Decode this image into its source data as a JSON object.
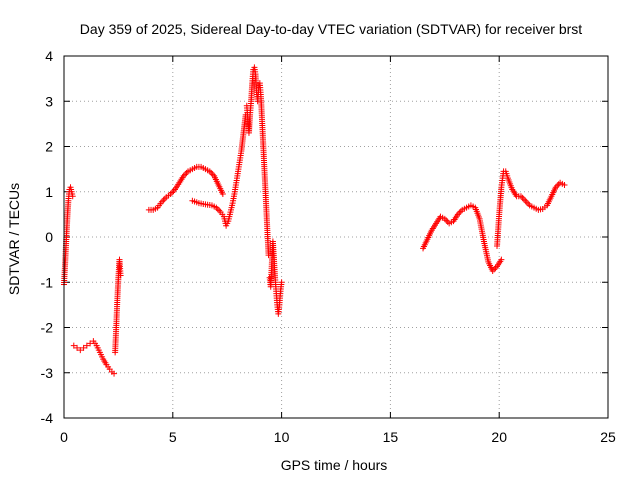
{
  "chart_data": {
    "type": "scatter",
    "title": "Day 359 of 2025, Sidereal Day-to-day VTEC variation (SDTVAR) for receiver brst",
    "xlabel": "GPS time / hours",
    "ylabel": "SDTVAR / TECUs",
    "xlim": [
      0,
      25
    ],
    "ylim": [
      -4,
      4
    ],
    "xticks": [
      "0",
      "5",
      "10",
      "15",
      "20",
      "25"
    ],
    "yticks": [
      "-4",
      "-3",
      "-2",
      "-1",
      "0",
      "1",
      "2",
      "3",
      "4"
    ],
    "grid": true,
    "marker": "plus",
    "color": "#ff0000",
    "series": [
      {
        "x": [
          0.0,
          0.05,
          0.1,
          0.15,
          0.2,
          0.25,
          0.3,
          0.35,
          0.4
        ],
        "y": [
          -1.05,
          -0.6,
          -0.1,
          0.4,
          0.8,
          1.05,
          1.1,
          1.0,
          0.9
        ]
      },
      {
        "x": [
          0.45,
          0.6,
          0.75,
          0.9,
          1.05,
          1.2,
          1.35,
          1.5,
          1.65,
          1.8,
          1.95,
          2.1,
          2.2,
          2.3
        ],
        "y": [
          -2.4,
          -2.45,
          -2.5,
          -2.45,
          -2.4,
          -2.35,
          -2.3,
          -2.4,
          -2.55,
          -2.7,
          -2.82,
          -2.92,
          -2.98,
          -3.02
        ]
      },
      {
        "x": [
          2.35,
          2.4,
          2.45,
          2.5,
          2.55,
          2.6
        ],
        "y": [
          -2.55,
          -2.0,
          -1.4,
          -0.9,
          -0.5,
          -0.85
        ]
      },
      {
        "x": [
          3.9,
          4.1,
          4.3,
          4.5,
          4.7,
          4.9,
          5.1,
          5.3,
          5.5,
          5.7,
          5.9,
          6.1,
          6.3,
          6.5,
          6.7,
          6.9,
          7.1,
          7.3
        ],
        "y": [
          0.6,
          0.6,
          0.65,
          0.78,
          0.88,
          0.95,
          1.05,
          1.2,
          1.35,
          1.45,
          1.5,
          1.55,
          1.55,
          1.5,
          1.45,
          1.35,
          1.15,
          0.95
        ]
      },
      {
        "x": [
          5.9,
          6.2,
          6.5,
          6.8,
          7.0,
          7.2,
          7.35,
          7.45,
          7.55,
          7.65,
          7.75,
          7.85,
          7.95,
          8.05,
          8.15,
          8.25,
          8.35
        ],
        "y": [
          0.8,
          0.75,
          0.72,
          0.7,
          0.65,
          0.55,
          0.45,
          0.25,
          0.35,
          0.55,
          0.75,
          1.0,
          1.3,
          1.6,
          1.9,
          2.3,
          2.7
        ]
      },
      {
        "x": [
          8.4,
          8.45,
          8.5,
          8.55,
          8.6,
          8.65,
          8.7,
          8.75,
          8.8,
          8.85,
          8.9,
          8.95,
          9.0,
          9.05,
          9.1,
          9.15,
          9.2,
          9.25,
          9.3,
          9.35,
          9.4
        ],
        "y": [
          2.9,
          2.6,
          2.3,
          2.7,
          3.0,
          3.4,
          3.7,
          3.75,
          3.6,
          3.2,
          3.0,
          3.3,
          3.4,
          3.1,
          2.6,
          2.1,
          1.6,
          1.1,
          0.6,
          0.1,
          -0.4
        ]
      },
      {
        "x": [
          9.45,
          9.5,
          9.55,
          9.6,
          9.65,
          9.7,
          9.75,
          9.8,
          9.85,
          9.9,
          9.95,
          10.0
        ],
        "y": [
          -0.9,
          -1.1,
          -0.6,
          -0.1,
          -0.5,
          -0.9,
          -1.2,
          -1.5,
          -1.7,
          -1.5,
          -1.2,
          -1.0
        ]
      },
      {
        "x": [
          16.5,
          16.7,
          16.9,
          17.1,
          17.3,
          17.5,
          17.7,
          17.9,
          18.1,
          18.3,
          18.5,
          18.7,
          18.9,
          19.1,
          19.3,
          19.5,
          19.7,
          19.9,
          20.1
        ],
        "y": [
          -0.25,
          -0.05,
          0.15,
          0.3,
          0.45,
          0.4,
          0.3,
          0.35,
          0.5,
          0.6,
          0.65,
          0.7,
          0.65,
          0.4,
          -0.1,
          -0.55,
          -0.75,
          -0.65,
          -0.5
        ]
      },
      {
        "x": [
          19.9,
          20.0,
          20.1,
          20.2,
          20.3,
          20.4,
          20.6,
          20.8,
          21.0,
          21.2,
          21.4,
          21.6,
          21.8,
          22.0,
          22.2,
          22.4,
          22.6,
          22.8,
          23.0
        ],
        "y": [
          -0.2,
          0.5,
          1.1,
          1.45,
          1.45,
          1.3,
          1.05,
          0.9,
          0.9,
          0.8,
          0.7,
          0.65,
          0.6,
          0.62,
          0.7,
          0.9,
          1.1,
          1.2,
          1.15
        ]
      }
    ]
  }
}
